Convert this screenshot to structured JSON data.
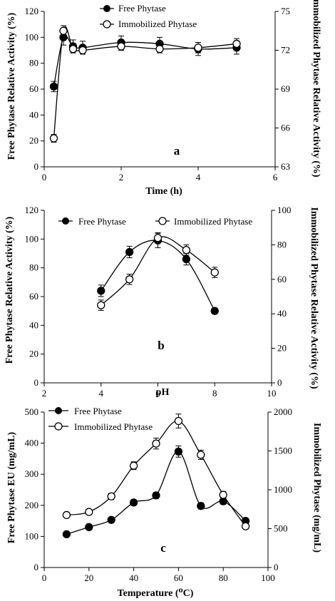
{
  "chart_data": [
    {
      "type": "line",
      "panel_label": "a",
      "xlabel": "Time (h)",
      "ylabel_left": "Free Phytase Relative Activity (%)",
      "ylabel_right": "Immobilized Phytase Relative Activity (%)",
      "xlim": [
        0,
        6
      ],
      "ylim_left": [
        0,
        120
      ],
      "ylim_right": [
        63,
        75
      ],
      "x_ticks": [
        0,
        2,
        4,
        6
      ],
      "y_ticks_left": [
        0,
        20,
        40,
        60,
        80,
        100,
        120
      ],
      "y_ticks_right": [
        63,
        66,
        69,
        72,
        75
      ],
      "legend_position": "top-center",
      "series": [
        {
          "name": "Free Phytase",
          "axis": "left",
          "marker": "filled-circle",
          "x": [
            0.25,
            0.5,
            0.75,
            1,
            2,
            3,
            4,
            5
          ],
          "y": [
            62,
            100,
            93,
            92,
            96,
            95,
            91,
            92
          ],
          "err": [
            4,
            6,
            5,
            5,
            5,
            5,
            5,
            5
          ]
        },
        {
          "name": "Immobilized Phytase",
          "axis": "right",
          "marker": "open-circle",
          "x": [
            0.25,
            0.5,
            0.75,
            1,
            2,
            3,
            4,
            5
          ],
          "y": [
            65.2,
            73.5,
            72.1,
            72.0,
            72.3,
            72.1,
            72.2,
            72.5
          ],
          "err": [
            0.3,
            0.4,
            0.3,
            0.3,
            0.3,
            0.3,
            0.4,
            0.4
          ]
        }
      ]
    },
    {
      "type": "line",
      "panel_label": "b",
      "xlabel": "pH",
      "ylabel_left": "Free Phytase Relative Activity (%)",
      "ylabel_right": "Immobilized Phytase Relative Activity (%)",
      "xlim": [
        2,
        10
      ],
      "ylim_left": [
        0,
        120
      ],
      "ylim_right": [
        0,
        100
      ],
      "x_ticks": [
        2,
        4,
        6,
        8,
        10
      ],
      "y_ticks_left": [
        0,
        20,
        40,
        60,
        80,
        100,
        120
      ],
      "y_ticks_right": [
        0,
        20,
        40,
        60,
        80,
        100
      ],
      "legend_position": "top",
      "series": [
        {
          "name": "Free Phytase",
          "axis": "left",
          "marker": "filled-circle",
          "x": [
            4,
            5,
            6,
            7,
            8
          ],
          "y": [
            64,
            91,
            99,
            86,
            50
          ],
          "err": [
            4,
            4,
            5,
            4,
            2
          ]
        },
        {
          "name": "Immobilized Phytase",
          "axis": "right",
          "marker": "open-circle",
          "x": [
            4,
            5,
            6,
            7,
            8
          ],
          "y": [
            45,
            60,
            84,
            77,
            64
          ],
          "err": [
            3,
            3,
            3,
            3,
            3
          ]
        }
      ]
    },
    {
      "type": "line",
      "panel_label": "c",
      "xlabel": "Temperature (⁰C)",
      "ylabel_left": "Free Phytase EU (mg/mL)",
      "ylabel_right": "Immobilized Phytase (mg/mL)",
      "xlim": [
        0,
        100
      ],
      "ylim_left": [
        0,
        500
      ],
      "ylim_right": [
        0,
        2000
      ],
      "x_ticks": [
        0,
        20,
        40,
        60,
        80,
        100
      ],
      "y_ticks_left": [
        0,
        100,
        200,
        300,
        400,
        500
      ],
      "y_ticks_right": [
        0,
        500,
        1000,
        1500,
        2000
      ],
      "legend_position": "top-left",
      "series": [
        {
          "name": "Free Phytase",
          "axis": "left",
          "marker": "filled-circle",
          "x": [
            10,
            20,
            30,
            40,
            50,
            60,
            70,
            80,
            90
          ],
          "y": [
            107,
            130,
            153,
            209,
            232,
            373,
            198,
            213,
            150
          ],
          "err": [
            5,
            5,
            6,
            8,
            10,
            18,
            10,
            10,
            6
          ]
        },
        {
          "name": "Immobilized Phytase",
          "axis": "right",
          "marker": "open-circle",
          "x": [
            10,
            20,
            30,
            40,
            50,
            60,
            70,
            80,
            90
          ],
          "y": [
            675,
            715,
            915,
            1310,
            1595,
            1885,
            1450,
            935,
            530
          ],
          "err": [
            30,
            35,
            40,
            50,
            70,
            90,
            60,
            40,
            30
          ]
        }
      ]
    }
  ]
}
